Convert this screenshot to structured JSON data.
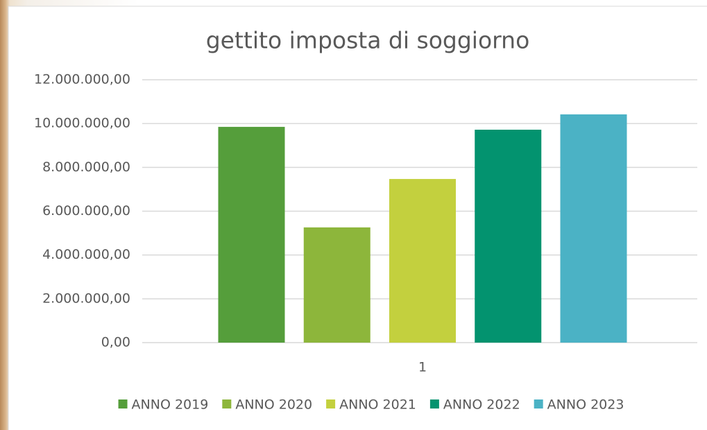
{
  "chart_data": {
    "type": "bar",
    "title": "gettito imposta di soggiorno",
    "categories": [
      "1"
    ],
    "series": [
      {
        "name": "ANNO 2019",
        "color": "#559e3b",
        "values": [
          9850000
        ]
      },
      {
        "name": "ANNO 2020",
        "color": "#8db63b",
        "values": [
          5260000
        ]
      },
      {
        "name": "ANNO 2021",
        "color": "#c3d03e",
        "values": [
          7470000
        ]
      },
      {
        "name": "ANNO 2022",
        "color": "#03936f",
        "values": [
          9720000
        ]
      },
      {
        "name": "ANNO 2023",
        "color": "#4bb2c5",
        "values": [
          10420000
        ]
      }
    ],
    "ylim": [
      0,
      12000000
    ],
    "yticks": [
      {
        "value": 0,
        "label": "0,00"
      },
      {
        "value": 2000000,
        "label": "2.000.000,00"
      },
      {
        "value": 4000000,
        "label": "4.000.000,00"
      },
      {
        "value": 6000000,
        "label": "6.000.000,00"
      },
      {
        "value": 8000000,
        "label": "8.000.000,00"
      },
      {
        "value": 10000000,
        "label": "10.000.000,00"
      },
      {
        "value": 12000000,
        "label": "12.000.000,00"
      }
    ],
    "grid": true,
    "legend": "bottom"
  }
}
